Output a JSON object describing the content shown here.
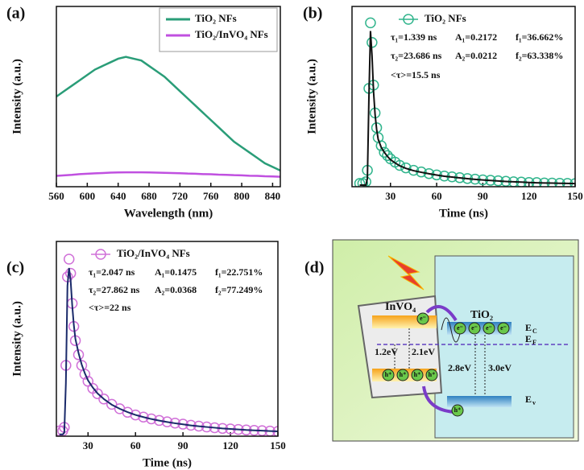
{
  "chart_data": [
    {
      "type": "line",
      "panel": "(a)",
      "xlabel": "Wavelength (nm)",
      "ylabel": "Intensity (a.u.)",
      "xlim": [
        560,
        850
      ],
      "xticks": [
        560,
        600,
        640,
        680,
        720,
        760,
        800,
        840
      ],
      "ylim": [
        0,
        100
      ],
      "legend": "top-right",
      "x": [
        560,
        570,
        580,
        590,
        600,
        610,
        620,
        630,
        640,
        650,
        660,
        670,
        680,
        690,
        700,
        710,
        720,
        730,
        740,
        750,
        760,
        770,
        780,
        790,
        800,
        810,
        820,
        830,
        840,
        850
      ],
      "series": [
        {
          "name": "TiO₂ NFs",
          "color": "#2a9d78",
          "values": [
            50,
            53,
            56,
            59,
            62,
            65,
            67,
            69,
            71,
            72,
            71,
            70,
            67,
            64,
            61,
            57,
            53,
            49,
            45,
            41,
            37,
            33,
            29,
            25,
            22,
            19,
            16,
            13,
            11,
            9
          ]
        },
        {
          "name": "TiO₂/InVO₄ NFs",
          "color": "#c050e0",
          "values": [
            6,
            6.3,
            6.6,
            7,
            7.2,
            7.4,
            7.6,
            7.8,
            7.9,
            8,
            8,
            8,
            7.9,
            7.8,
            7.7,
            7.6,
            7.5,
            7.3,
            7.2,
            7,
            6.9,
            6.7,
            6.6,
            6.4,
            6.3,
            6.1,
            6,
            5.8,
            5.7,
            5.5
          ]
        }
      ]
    },
    {
      "type": "scatter",
      "panel": "(b)",
      "xlabel": "Time (ns)",
      "ylabel": "Intensity (a.u.)",
      "xlim": [
        5,
        150
      ],
      "xticks": [
        30,
        60,
        90,
        120,
        150
      ],
      "ylim": [
        0,
        110
      ],
      "x": [
        10,
        12,
        14,
        15,
        16,
        17,
        18,
        19,
        20,
        21,
        22,
        24,
        26,
        28,
        30,
        33,
        36,
        40,
        45,
        50,
        55,
        60,
        65,
        70,
        75,
        80,
        85,
        90,
        95,
        100,
        105,
        110,
        115,
        120,
        125,
        130,
        135,
        140,
        145,
        150
      ],
      "series": [
        {
          "name": "TiO₂ NFs",
          "color": "#30b48c",
          "values": [
            2,
            2,
            3,
            10,
            60,
            100,
            88,
            62,
            45,
            36,
            30,
            25,
            21,
            19,
            17,
            15,
            13,
            11.5,
            10,
            9,
            8,
            7.2,
            6.5,
            6,
            5.5,
            5,
            4.6,
            4.2,
            3.9,
            3.6,
            3.3,
            3,
            2.8,
            2.6,
            2.5,
            2.3,
            2.2,
            2.1,
            2,
            1.9
          ]
        }
      ],
      "fit": {
        "color": "#111111",
        "values": [
          1,
          1,
          1,
          5,
          55,
          95,
          80,
          58,
          44,
          35,
          29,
          24,
          21,
          18.5,
          16.5,
          14.5,
          12.8,
          11.2,
          9.8,
          8.8,
          7.9,
          7.1,
          6.4,
          5.9,
          5.4,
          4.9,
          4.5,
          4.1,
          3.8,
          3.5,
          3.2,
          3,
          2.8,
          2.6,
          2.4,
          2.3,
          2.2,
          2.1,
          2,
          1.9
        ]
      },
      "annotations": [
        [
          "τ₁=1.339 ns",
          "A₁=0.2172",
          "f₁=36.662%"
        ],
        [
          "τ₂=23.686 ns",
          "A₂=0.0212",
          "f₂=63.338%"
        ],
        [
          "<τ>=15.5 ns"
        ]
      ]
    },
    {
      "type": "scatter",
      "panel": "(c)",
      "xlabel": "Time (ns)",
      "ylabel": "Intensity (a.u.)",
      "xlim": [
        10,
        150
      ],
      "xticks": [
        30,
        60,
        90,
        120,
        150
      ],
      "ylim": [
        0,
        110
      ],
      "x": [
        12,
        14,
        15,
        16,
        17,
        18,
        19,
        20,
        21,
        22,
        24,
        26,
        28,
        30,
        33,
        36,
        40,
        45,
        50,
        55,
        60,
        65,
        70,
        75,
        80,
        85,
        90,
        95,
        100,
        105,
        110,
        115,
        120,
        125,
        130,
        135,
        140,
        145,
        150
      ],
      "series": [
        {
          "name": "TiO₂/InVO₄ NFs",
          "color": "#d070d8",
          "values": [
            3,
            3,
            5,
            40,
            90,
            100,
            92,
            75,
            62,
            54,
            46,
            40,
            35,
            31,
            27,
            24,
            21,
            18,
            15.5,
            13.5,
            12,
            10.8,
            9.8,
            8.9,
            8.1,
            7.4,
            6.8,
            6.2,
            5.7,
            5.2,
            4.8,
            4.4,
            4.1,
            3.8,
            3.5,
            3.3,
            3.1,
            2.9,
            2.7
          ]
        }
      ],
      "fit": {
        "color": "#1a2a6a",
        "values": [
          1,
          1,
          2,
          30,
          85,
          95,
          88,
          74,
          63,
          55,
          47,
          40.5,
          35.5,
          31.5,
          27.5,
          24.2,
          21,
          17.8,
          15.5,
          13.6,
          12,
          10.8,
          9.7,
          8.8,
          8,
          7.3,
          6.7,
          6.1,
          5.6,
          5.2,
          4.8,
          4.4,
          4.1,
          3.8,
          3.5,
          3.3,
          3.1,
          2.9,
          2.7
        ]
      },
      "annotations": [
        [
          "τ₁=2.047 ns",
          "A₁=0.1475",
          "f₁=22.751%"
        ],
        [
          "τ₂=27.862 ns",
          "A₂=0.0368",
          "f₂=77.249%"
        ],
        [
          "<τ>=22 ns"
        ]
      ]
    }
  ],
  "diagram": {
    "panel": "(d)",
    "materials": [
      "InVO₄",
      "TiO₂"
    ],
    "electron": "e⁻",
    "hole": "h⁺",
    "levels": [
      {
        "main": "E",
        "sub": "C"
      },
      {
        "main": "E",
        "sub": "F"
      },
      {
        "main": "E",
        "sub": "v"
      }
    ],
    "gaps": [
      "1.2eV",
      "2.1eV",
      "2.8eV",
      "3.0eV"
    ]
  }
}
